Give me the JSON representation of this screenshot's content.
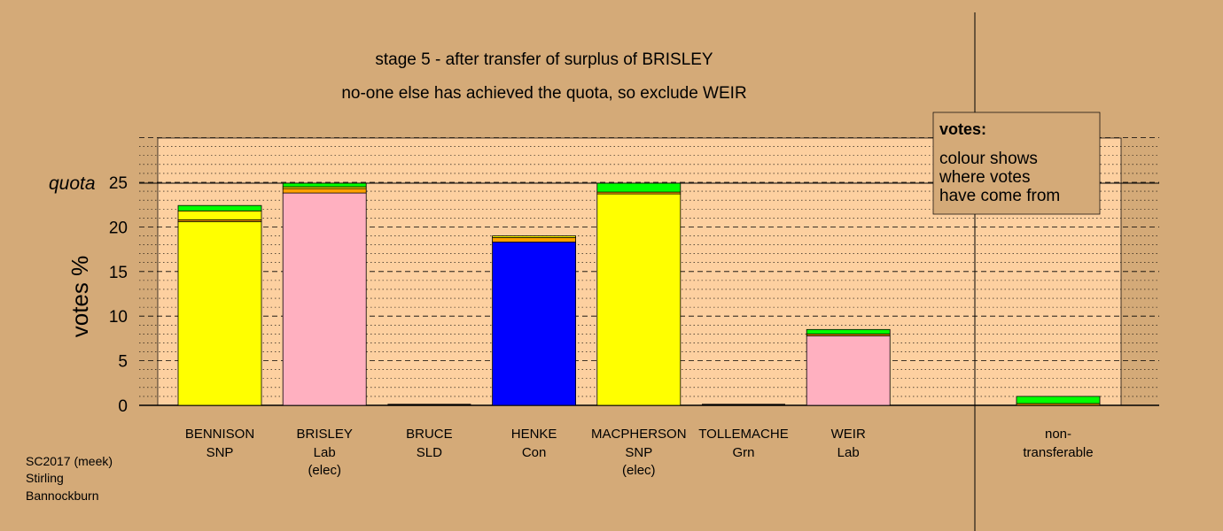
{
  "title_line1": "stage 5 - after transfer of surplus of BRISLEY",
  "title_line2": "no-one else has achieved the quota, so exclude WEIR",
  "legend": {
    "title": "votes:",
    "lines": [
      "colour shows",
      "where votes",
      "have come from"
    ]
  },
  "footer": [
    "SC2017 (meek)",
    "Stirling",
    "Bannockburn"
  ],
  "quota_label": "quota",
  "colors": {
    "background": "#d4aa78",
    "plot_bg": "#fdd0a0",
    "SNP": "#ffff00",
    "Lab": "#ffb0c0",
    "Con": "#0000ff",
    "Grn": "#00ff00",
    "SLD": "#ffa000",
    "transfer": "#b8b8b8"
  },
  "chart_data": {
    "type": "bar",
    "stacked": true,
    "ylabel": "votes %",
    "ylim": [
      0,
      30
    ],
    "yticks": [
      0,
      5,
      10,
      15,
      20,
      25
    ],
    "quota": 24.9,
    "grid": "dotted",
    "legend_position": "top-right",
    "candidates": [
      {
        "name": "BENNISON",
        "party": "SNP",
        "note": "",
        "segments": [
          {
            "source": "SNP",
            "value": 20.6
          },
          {
            "source": "SLD",
            "value": 0.2
          },
          {
            "source": "SNP",
            "value": 1.0
          },
          {
            "source": "Grn",
            "value": 0.6
          }
        ]
      },
      {
        "name": "BRISLEY",
        "party": "Lab",
        "note": "(elec)",
        "segments": [
          {
            "source": "Lab",
            "value": 23.8
          },
          {
            "source": "SLD",
            "value": 0.5
          },
          {
            "source": "SNP",
            "value": 0.2
          },
          {
            "source": "Grn",
            "value": 0.4
          }
        ]
      },
      {
        "name": "BRUCE",
        "party": "SLD",
        "note": "",
        "segments": []
      },
      {
        "name": "HENKE",
        "party": "Con",
        "note": "",
        "segments": [
          {
            "source": "Con",
            "value": 18.3
          },
          {
            "source": "SLD",
            "value": 0.5
          },
          {
            "source": "SNP",
            "value": 0.2
          }
        ]
      },
      {
        "name": "MACPHERSON",
        "party": "SNP",
        "note": "(elec)",
        "segments": [
          {
            "source": "SNP",
            "value": 23.7
          },
          {
            "source": "SLD",
            "value": 0.2
          },
          {
            "source": "Grn",
            "value": 1.0
          }
        ]
      },
      {
        "name": "TOLLEMACHE",
        "party": "Grn",
        "note": "",
        "segments": []
      },
      {
        "name": "WEIR",
        "party": "Lab",
        "note": "",
        "segments": [
          {
            "source": "Lab",
            "value": 7.8
          },
          {
            "source": "SLD",
            "value": 0.2
          },
          {
            "source": "Grn",
            "value": 0.5
          }
        ]
      }
    ],
    "non_transferable": {
      "label_line1": "non-",
      "label_line2": "transferable",
      "segments": [
        {
          "source": "SLD",
          "value": 0.2
        },
        {
          "source": "Grn",
          "value": 0.8
        }
      ]
    }
  }
}
